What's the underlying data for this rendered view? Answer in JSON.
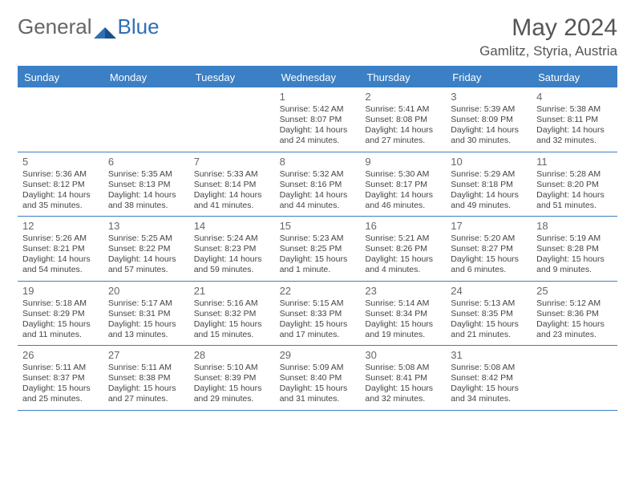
{
  "logo": {
    "text1": "General",
    "text2": "Blue"
  },
  "title": "May 2024",
  "location": "Gamlitz, Styria, Austria",
  "weekdays": [
    "Sunday",
    "Monday",
    "Tuesday",
    "Wednesday",
    "Thursday",
    "Friday",
    "Saturday"
  ],
  "colors": {
    "accent": "#3b7fc4",
    "text": "#444444",
    "muted": "#666666",
    "background": "#ffffff"
  },
  "weeks": [
    [
      null,
      null,
      null,
      null,
      {
        "n": "1",
        "sunrise": "5:42 AM",
        "sunset": "8:07 PM",
        "daylight": "14 hours and 24 minutes."
      },
      {
        "n": "2",
        "sunrise": "5:41 AM",
        "sunset": "8:08 PM",
        "daylight": "14 hours and 27 minutes."
      },
      {
        "n": "3",
        "sunrise": "5:39 AM",
        "sunset": "8:09 PM",
        "daylight": "14 hours and 30 minutes."
      },
      {
        "n": "4",
        "sunrise": "5:38 AM",
        "sunset": "8:11 PM",
        "daylight": "14 hours and 32 minutes."
      }
    ],
    [
      {
        "n": "5",
        "sunrise": "5:36 AM",
        "sunset": "8:12 PM",
        "daylight": "14 hours and 35 minutes."
      },
      {
        "n": "6",
        "sunrise": "5:35 AM",
        "sunset": "8:13 PM",
        "daylight": "14 hours and 38 minutes."
      },
      {
        "n": "7",
        "sunrise": "5:33 AM",
        "sunset": "8:14 PM",
        "daylight": "14 hours and 41 minutes."
      },
      {
        "n": "8",
        "sunrise": "5:32 AM",
        "sunset": "8:16 PM",
        "daylight": "14 hours and 44 minutes."
      },
      {
        "n": "9",
        "sunrise": "5:30 AM",
        "sunset": "8:17 PM",
        "daylight": "14 hours and 46 minutes."
      },
      {
        "n": "10",
        "sunrise": "5:29 AM",
        "sunset": "8:18 PM",
        "daylight": "14 hours and 49 minutes."
      },
      {
        "n": "11",
        "sunrise": "5:28 AM",
        "sunset": "8:20 PM",
        "daylight": "14 hours and 51 minutes."
      }
    ],
    [
      {
        "n": "12",
        "sunrise": "5:26 AM",
        "sunset": "8:21 PM",
        "daylight": "14 hours and 54 minutes."
      },
      {
        "n": "13",
        "sunrise": "5:25 AM",
        "sunset": "8:22 PM",
        "daylight": "14 hours and 57 minutes."
      },
      {
        "n": "14",
        "sunrise": "5:24 AM",
        "sunset": "8:23 PM",
        "daylight": "14 hours and 59 minutes."
      },
      {
        "n": "15",
        "sunrise": "5:23 AM",
        "sunset": "8:25 PM",
        "daylight": "15 hours and 1 minute."
      },
      {
        "n": "16",
        "sunrise": "5:21 AM",
        "sunset": "8:26 PM",
        "daylight": "15 hours and 4 minutes."
      },
      {
        "n": "17",
        "sunrise": "5:20 AM",
        "sunset": "8:27 PM",
        "daylight": "15 hours and 6 minutes."
      },
      {
        "n": "18",
        "sunrise": "5:19 AM",
        "sunset": "8:28 PM",
        "daylight": "15 hours and 9 minutes."
      }
    ],
    [
      {
        "n": "19",
        "sunrise": "5:18 AM",
        "sunset": "8:29 PM",
        "daylight": "15 hours and 11 minutes."
      },
      {
        "n": "20",
        "sunrise": "5:17 AM",
        "sunset": "8:31 PM",
        "daylight": "15 hours and 13 minutes."
      },
      {
        "n": "21",
        "sunrise": "5:16 AM",
        "sunset": "8:32 PM",
        "daylight": "15 hours and 15 minutes."
      },
      {
        "n": "22",
        "sunrise": "5:15 AM",
        "sunset": "8:33 PM",
        "daylight": "15 hours and 17 minutes."
      },
      {
        "n": "23",
        "sunrise": "5:14 AM",
        "sunset": "8:34 PM",
        "daylight": "15 hours and 19 minutes."
      },
      {
        "n": "24",
        "sunrise": "5:13 AM",
        "sunset": "8:35 PM",
        "daylight": "15 hours and 21 minutes."
      },
      {
        "n": "25",
        "sunrise": "5:12 AM",
        "sunset": "8:36 PM",
        "daylight": "15 hours and 23 minutes."
      }
    ],
    [
      {
        "n": "26",
        "sunrise": "5:11 AM",
        "sunset": "8:37 PM",
        "daylight": "15 hours and 25 minutes."
      },
      {
        "n": "27",
        "sunrise": "5:11 AM",
        "sunset": "8:38 PM",
        "daylight": "15 hours and 27 minutes."
      },
      {
        "n": "28",
        "sunrise": "5:10 AM",
        "sunset": "8:39 PM",
        "daylight": "15 hours and 29 minutes."
      },
      {
        "n": "29",
        "sunrise": "5:09 AM",
        "sunset": "8:40 PM",
        "daylight": "15 hours and 31 minutes."
      },
      {
        "n": "30",
        "sunrise": "5:08 AM",
        "sunset": "8:41 PM",
        "daylight": "15 hours and 32 minutes."
      },
      {
        "n": "31",
        "sunrise": "5:08 AM",
        "sunset": "8:42 PM",
        "daylight": "15 hours and 34 minutes."
      },
      null
    ]
  ],
  "labels": {
    "sunrise": "Sunrise:",
    "sunset": "Sunset:",
    "daylight": "Daylight:"
  }
}
